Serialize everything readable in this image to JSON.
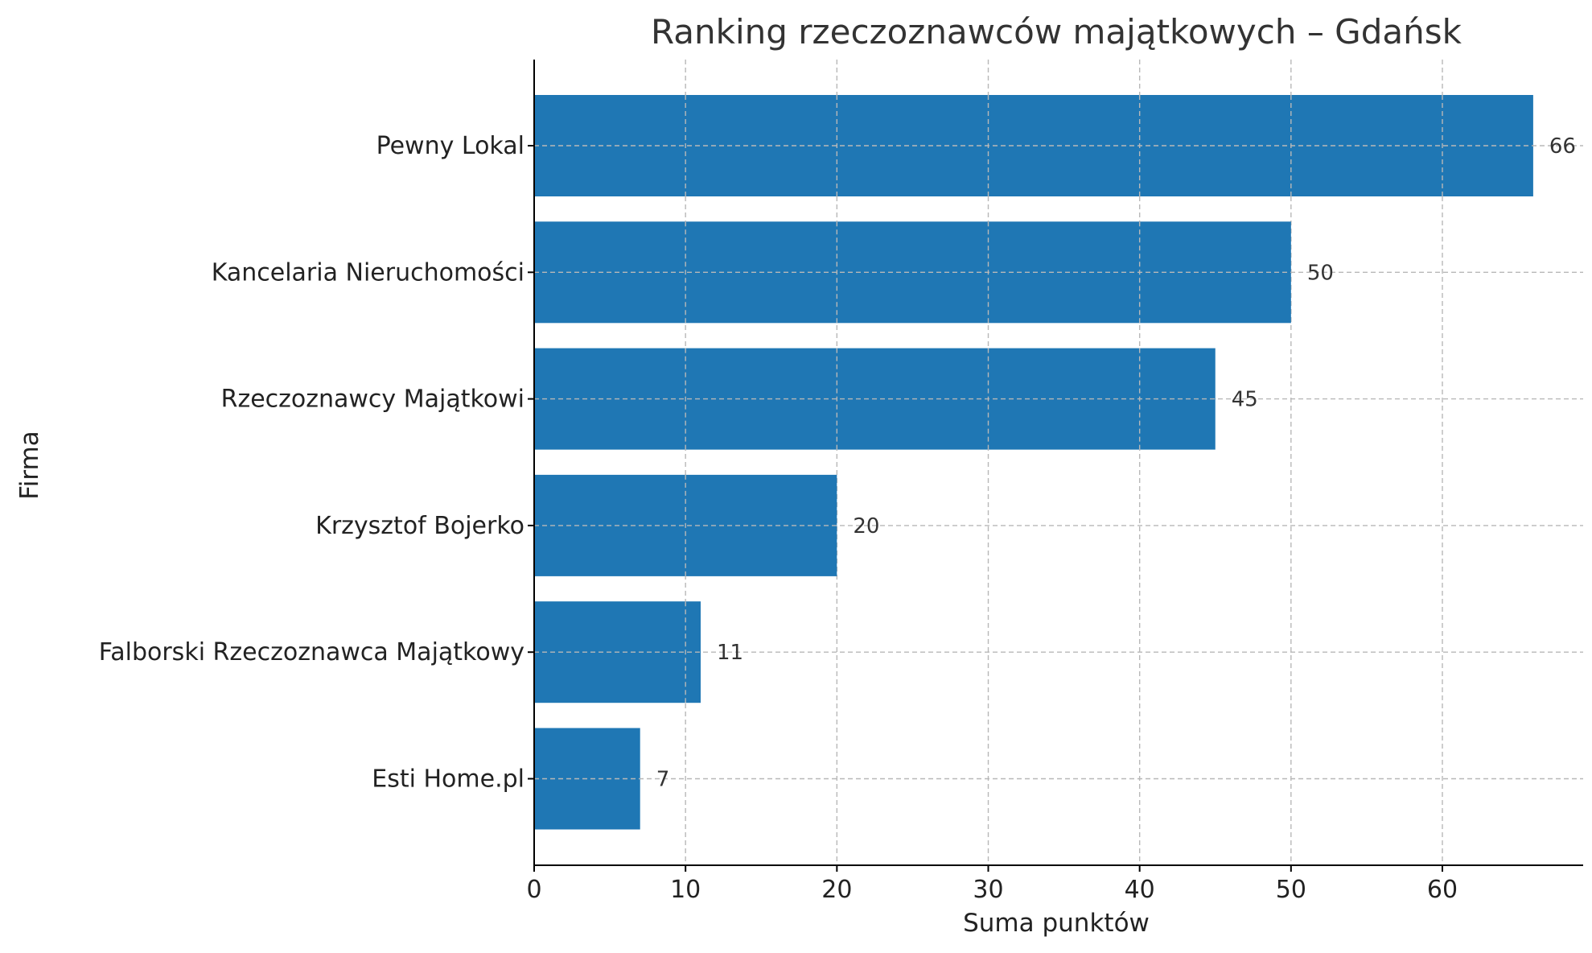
{
  "chart_data": {
    "type": "bar",
    "orientation": "horizontal",
    "title": "Ranking rzeczoznawców majątkowych – Gdańsk",
    "xlabel": "Suma punktów",
    "ylabel": "Firma",
    "categories": [
      "Pewny Lokal",
      "Kancelaria Nieruchomości",
      "Rzeczoznawcy Majątkowi",
      "Krzysztof Bojerko",
      "Falborski Rzeczoznawca Majątkowy",
      "Esti Home.pl"
    ],
    "values": [
      66,
      50,
      45,
      20,
      11,
      7
    ],
    "data_labels": [
      "66",
      "50",
      "45",
      "20",
      "11",
      "7"
    ],
    "xlim": [
      0,
      69.3
    ],
    "xticks": [
      0,
      10,
      20,
      30,
      40,
      50,
      60
    ],
    "xtick_labels": [
      "0",
      "10",
      "20",
      "30",
      "40",
      "50",
      "60"
    ],
    "grid": true,
    "bar_color": "#1f77b4"
  }
}
